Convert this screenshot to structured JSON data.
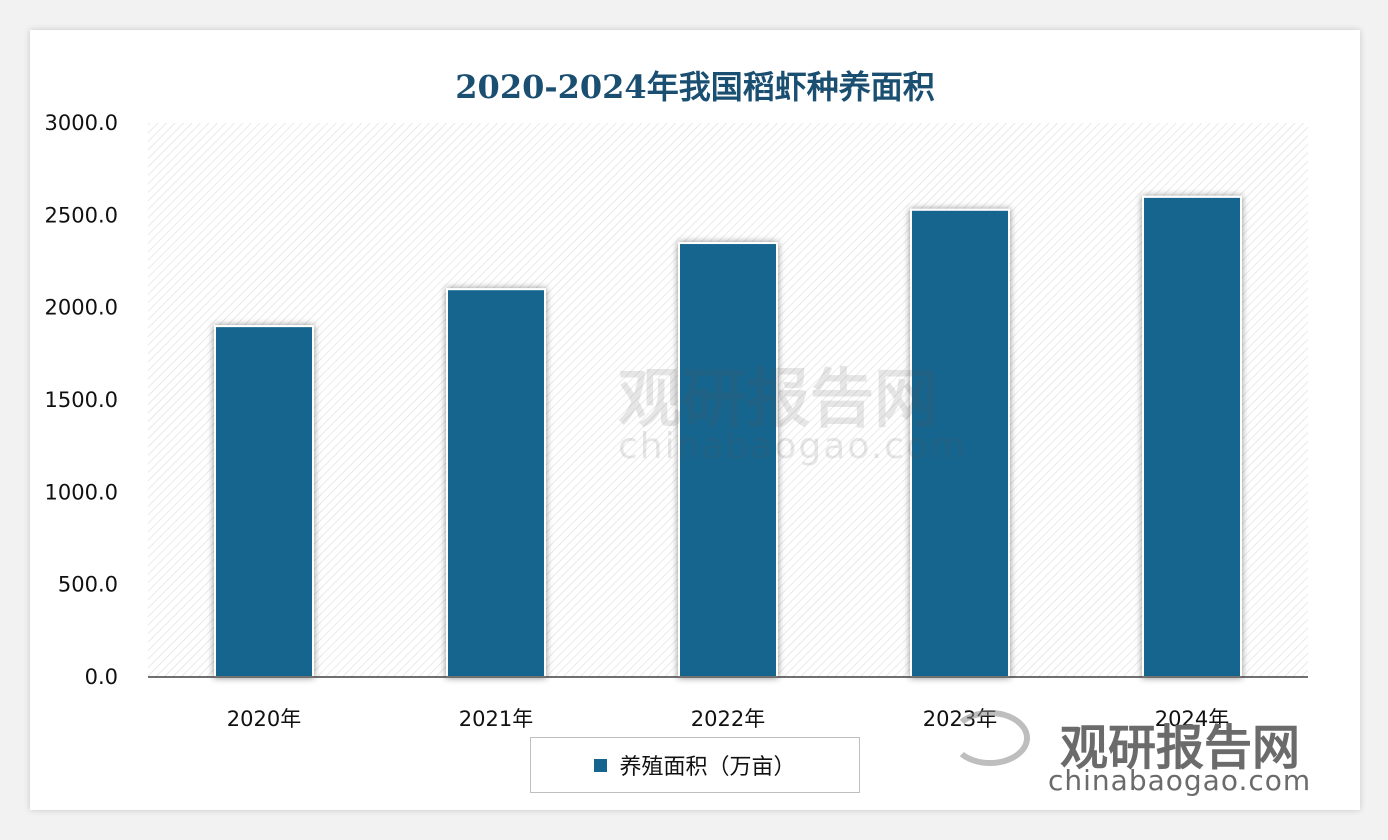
{
  "chart_data": {
    "type": "bar",
    "title": "2020-2024年我国稻虾种养面积",
    "categories": [
      "2020年",
      "2021年",
      "2022年",
      "2023年",
      "2024年"
    ],
    "series": [
      {
        "name": "养殖面积（万亩）",
        "values": [
          1900,
          2100,
          2350,
          2530,
          2600
        ],
        "color": "#17658e"
      }
    ],
    "ylim": [
      0,
      3000
    ],
    "yticks": [
      "0.0",
      "500.0",
      "1000.0",
      "1500.0",
      "2000.0",
      "2500.0",
      "3000.0"
    ],
    "grid": false,
    "plot_background": "hatched",
    "legend_position": "bottom"
  },
  "watermark": {
    "brand": "观研报告网",
    "site": "chinabaogao.com"
  }
}
